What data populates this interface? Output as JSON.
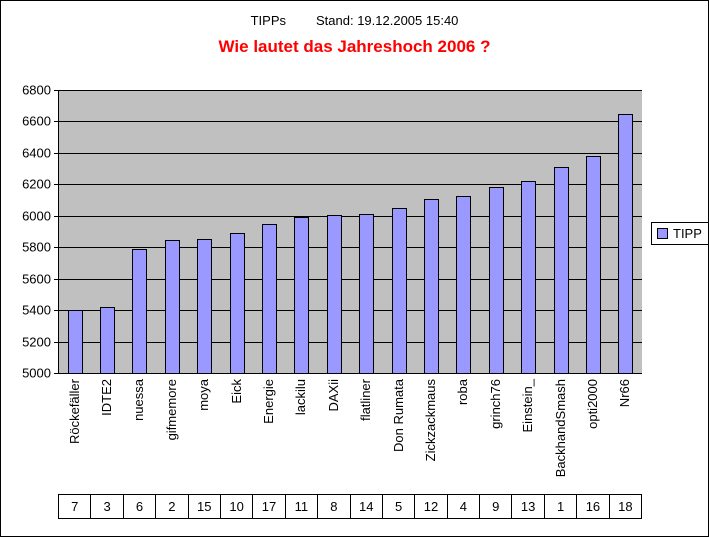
{
  "header": {
    "series_caption": "TIPPs",
    "stand": "Stand: 19.12.2005 15:40"
  },
  "chart_data": {
    "type": "bar",
    "title": "Wie lautet das Jahreshoch 2006 ?",
    "categories": [
      "Röckefäller",
      "IDTE2",
      "nuessa",
      "gifmemore",
      "moya",
      "Eick",
      "Energie",
      "lackilu",
      "DAXii",
      "flatliner",
      "Don Rumata",
      "Zickzackmaus",
      "roba",
      "grinch76",
      "Einstein_",
      "BackhandSmash",
      "opti2000",
      "Nr66"
    ],
    "series": [
      {
        "name": "TIPP",
        "values": [
          5400,
          5423,
          5790,
          5846,
          5852,
          5890,
          5948,
          5995,
          6004,
          6010,
          6048,
          6104,
          6128,
          6180,
          6220,
          6308,
          6378,
          6648
        ]
      }
    ],
    "rank_row": [
      7,
      3,
      6,
      2,
      15,
      10,
      17,
      11,
      8,
      14,
      5,
      12,
      4,
      9,
      13,
      1,
      16,
      18
    ],
    "ylim": [
      5000,
      6800
    ],
    "ytick_step": 200,
    "grid": true,
    "legend_position": "right",
    "bar_color": "#9999ff",
    "plot_bg": "#c0c0c0"
  }
}
